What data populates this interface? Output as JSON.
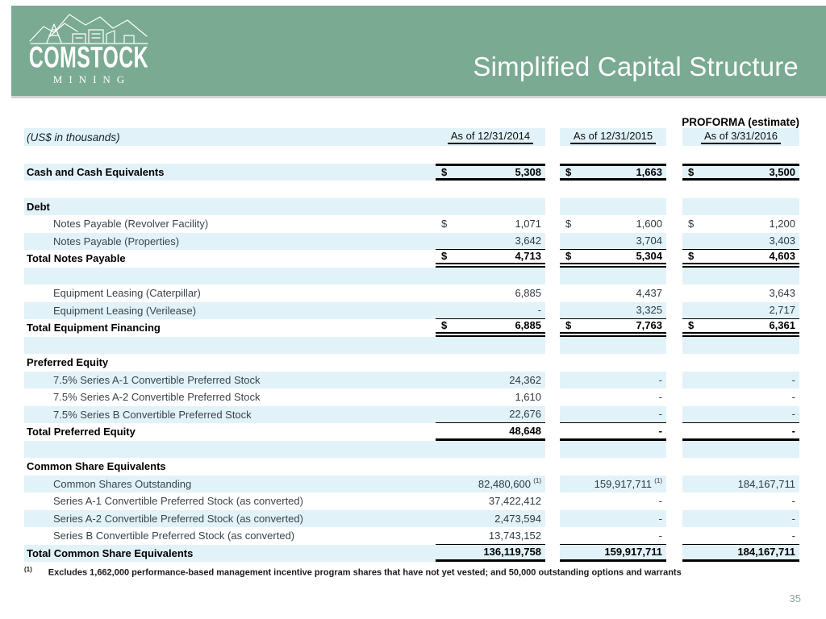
{
  "header": {
    "logo": {
      "line1": "COMSTOCK",
      "line2": "MINING"
    },
    "title": "Simplified Capital Structure"
  },
  "table": {
    "units_label": "(US$ in thousands)",
    "proforma_label": "PROFORMA (estimate)",
    "columns": [
      "As of 12/31/2014",
      "As of 12/31/2015",
      "As of 3/31/2016"
    ],
    "rows": [
      {
        "name": "blank-row",
        "stripe": false
      },
      {
        "name": "row-cash-and-cash-equivalents",
        "label": "Cash and Cash Equivalents",
        "label_bold": true,
        "stripe": true,
        "dollar": true,
        "value_bold": true,
        "border": "cash",
        "values": [
          "5,308",
          "1,663",
          "3,500"
        ]
      },
      {
        "name": "blank-row",
        "stripe": false
      },
      {
        "name": "row-debt-section",
        "label": "Debt",
        "label_bold": true,
        "stripe": true
      },
      {
        "name": "row-notes-payable-revolver",
        "label": "Notes Payable (Revolver Facility)",
        "indent": true,
        "stripe": false,
        "dollar": true,
        "values": [
          "1,071",
          "1,600",
          "1,200"
        ]
      },
      {
        "name": "row-notes-payable-properties",
        "label": "Notes Payable (Properties)",
        "indent": true,
        "stripe": true,
        "border": "thin",
        "values": [
          "3,642",
          "3,704",
          "3,403"
        ]
      },
      {
        "name": "row-total-notes-payable",
        "label": "Total Notes Payable",
        "label_bold": true,
        "stripe": false,
        "dollar": true,
        "value_bold": true,
        "border": "double",
        "values": [
          "4,713",
          "5,304",
          "4,603"
        ]
      },
      {
        "name": "blank-row",
        "stripe": true
      },
      {
        "name": "row-equipment-leasing-caterpillar",
        "label": "Equipment Leasing (Caterpillar)",
        "indent": true,
        "stripe": false,
        "values": [
          "6,885",
          "4,437",
          "3,643"
        ]
      },
      {
        "name": "row-equipment-leasing-verilease",
        "label": "Equipment Leasing (Verilease)",
        "indent": true,
        "stripe": true,
        "border": "thin",
        "values": [
          "-",
          "3,325",
          "2,717"
        ]
      },
      {
        "name": "row-total-equipment-financing",
        "label": "Total Equipment Financing",
        "label_bold": true,
        "stripe": false,
        "dollar": true,
        "value_bold": true,
        "border": "double",
        "values": [
          "6,885",
          "7,763",
          "6,361"
        ]
      },
      {
        "name": "blank-row",
        "stripe": true
      },
      {
        "name": "row-preferred-equity-section",
        "label": "Preferred Equity",
        "label_bold": true,
        "stripe": false
      },
      {
        "name": "row-series-a1-preferred",
        "label": "7.5% Series A-1 Convertible Preferred Stock",
        "indent": true,
        "stripe": true,
        "values": [
          "24,362",
          "-",
          "-"
        ]
      },
      {
        "name": "row-series-a2-preferred",
        "label": "7.5% Series A-2 Convertible Preferred Stock",
        "indent": true,
        "stripe": false,
        "values": [
          "1,610",
          "-",
          "-"
        ]
      },
      {
        "name": "row-series-b-preferred",
        "label": "7.5% Series B Convertible Preferred Stock",
        "indent": true,
        "stripe": true,
        "border": "thin",
        "values": [
          "22,676",
          "-",
          "-"
        ]
      },
      {
        "name": "row-total-preferred-equity",
        "label": "Total Preferred Equity",
        "label_bold": true,
        "stripe": false,
        "value_bold": true,
        "border": "thick",
        "values": [
          "48,648",
          "-",
          "-"
        ]
      },
      {
        "name": "blank-row",
        "stripe": true
      },
      {
        "name": "row-common-share-equivalents-section",
        "label": "Common Share Equivalents",
        "label_bold": true,
        "stripe": false
      },
      {
        "name": "row-common-shares-outstanding",
        "label": "Common Shares Outstanding",
        "indent": true,
        "stripe": true,
        "values": [
          "82,480,600",
          "159,917,711",
          "184,167,711"
        ],
        "sup": [
          1,
          1,
          0
        ]
      },
      {
        "name": "row-series-a1-as-converted",
        "label": "Series A-1 Convertible Preferred Stock (as converted)",
        "indent": true,
        "stripe": false,
        "values": [
          "37,422,412",
          "-",
          "-"
        ]
      },
      {
        "name": "row-series-a2-as-converted",
        "label": "Series A-2 Convertible Preferred Stock (as converted)",
        "indent": true,
        "stripe": true,
        "values": [
          "2,473,594",
          "-",
          "-"
        ]
      },
      {
        "name": "row-series-b-as-converted",
        "label": "Series B Convertible Preferred Stock (as converted)",
        "indent": true,
        "stripe": false,
        "border": "thin",
        "values": [
          "13,743,152",
          "-",
          "-"
        ]
      },
      {
        "name": "row-total-common-share-equivalents",
        "label": "Total Common Share Equivalents",
        "label_bold": true,
        "stripe": true,
        "value_bold": true,
        "border": "thick",
        "values": [
          "136,119,758",
          "159,917,711",
          "184,167,711"
        ]
      }
    ]
  },
  "footnote": {
    "marker": "(1)",
    "text": "Excludes 1,662,000 performance-based management incentive program shares that have not yet vested; and 50,000 outstanding options and warrants"
  },
  "page_number": "35",
  "colors": {
    "banner_green": "#7aaa92",
    "stripe_blue": "#e2f2f9",
    "border_black": "#000000",
    "page_number_green": "#8ba69b"
  }
}
